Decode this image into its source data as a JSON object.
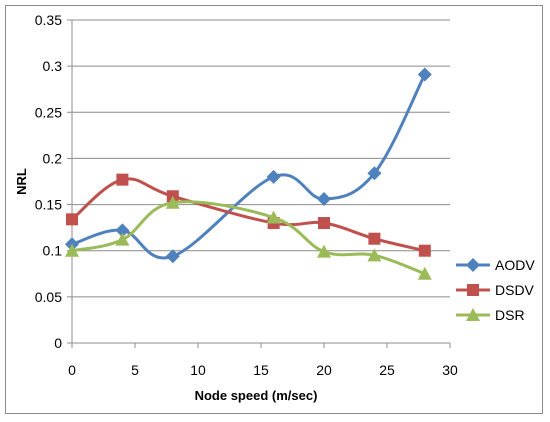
{
  "chart_data": {
    "type": "line",
    "xlabel": "Node speed (m/sec)",
    "ylabel": "NRL",
    "xlim": [
      0,
      30
    ],
    "ylim": [
      0,
      0.35
    ],
    "x_ticks": [
      "0",
      "5",
      "10",
      "15",
      "20",
      "25",
      "30"
    ],
    "y_ticks": [
      "0",
      "0.05",
      "0.1",
      "0.15",
      "0.2",
      "0.25",
      "0.3",
      "0.35"
    ],
    "grid": "horizontal",
    "legend_position": "right",
    "x": [
      0,
      4,
      8,
      16,
      20,
      24,
      28
    ],
    "series": [
      {
        "name": "AODV",
        "color": "#4f81bd",
        "marker": "diamond",
        "values": [
          0.107,
          0.122,
          0.094,
          0.18,
          0.156,
          0.184,
          0.291
        ]
      },
      {
        "name": "DSDV",
        "color": "#c0504d",
        "marker": "square",
        "values": [
          0.134,
          0.177,
          0.159,
          0.13,
          0.13,
          0.113,
          0.1
        ]
      },
      {
        "name": "DSR",
        "color": "#9bbb59",
        "marker": "triangle",
        "values": [
          0.1,
          0.112,
          0.152,
          0.136,
          0.099,
          0.095,
          0.075
        ]
      }
    ]
  }
}
